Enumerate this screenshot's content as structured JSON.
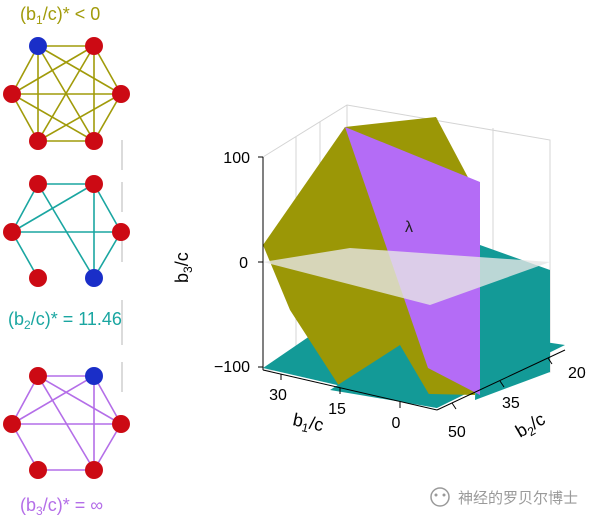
{
  "graphs": [
    {
      "label_main": "(b",
      "label_sub": "1",
      "label_rest": "/c)* < 0",
      "color": "#a19b0a"
    },
    {
      "label_main": "(b",
      "label_sub": "2",
      "label_rest": "/c)* = 11.46",
      "color": "#1aa6a1"
    },
    {
      "label_main": "(b",
      "label_sub": "3",
      "label_rest": "/c)* = ∞",
      "color": "#b46ee8"
    }
  ],
  "node_colors": {
    "red": "#cc0a14",
    "blue": "#1a2ec8"
  },
  "plot": {
    "z_ticks": [
      "100",
      "0",
      "−100"
    ],
    "x_ticks": [
      "30",
      "15",
      "0"
    ],
    "y_ticks": [
      "20",
      "35",
      "50"
    ],
    "z_label_main": "b",
    "z_label_sub": "3",
    "z_label_rest": "/c",
    "x_label_main": "b",
    "x_label_sub": "1",
    "x_label_rest": "/c",
    "y_label_main": "b",
    "y_label_sub": "2",
    "y_label_rest": "/c",
    "plane_label": "λ",
    "colors": {
      "olive": "#9b9706",
      "teal": "#139a97",
      "purple": "#b46cf6",
      "gray": "#d8d8d8"
    }
  },
  "watermark": {
    "text": "神经的罗贝尔博士"
  }
}
